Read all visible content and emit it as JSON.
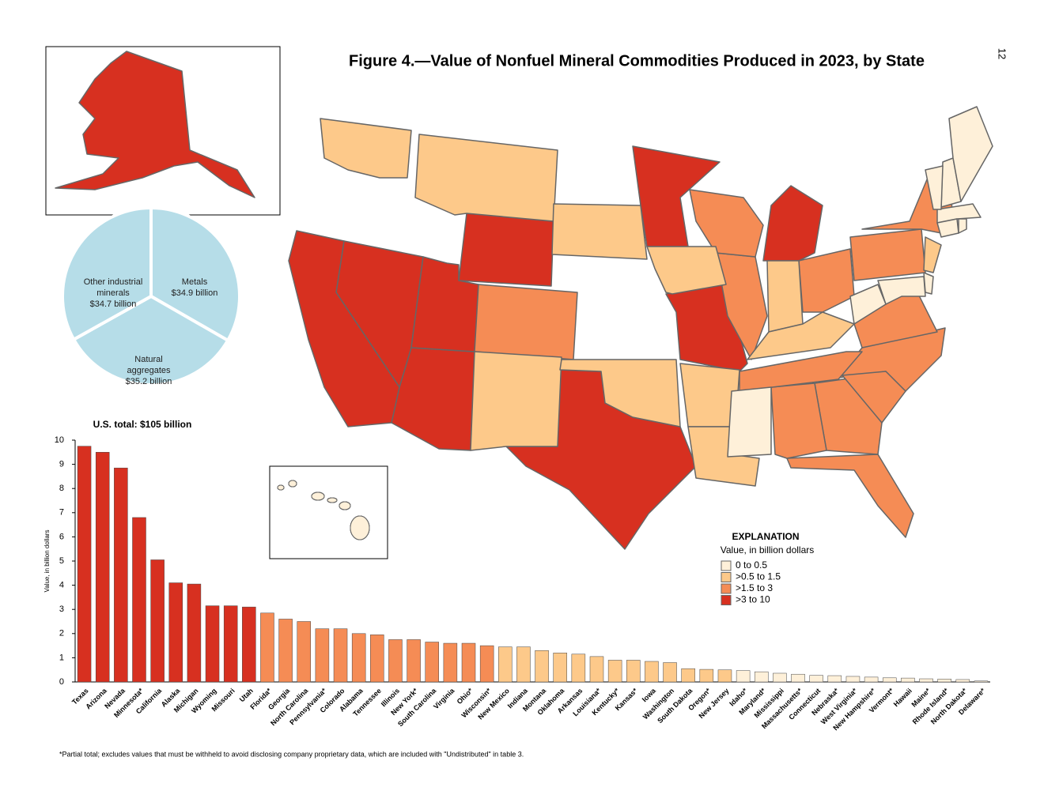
{
  "page_number": "12",
  "title": "Figure 4.—Value of Nonfuel Mineral Commodities Produced in 2023, by State",
  "footnote": "*Partial total; excludes values that must be withheld to avoid disclosing company proprietary data, which are included with \"Undistributed\" in table 3.",
  "map": {
    "legend_title": "EXPLANATION",
    "legend_subtitle": "Value, in billion dollars",
    "classes": [
      {
        "label": "0 to 0.5",
        "color": "#fef0d9"
      },
      {
        "label": ">0.5 to 1.5",
        "color": "#fdc98a"
      },
      {
        "label": ">1.5 to 3",
        "color": "#f58c55"
      },
      {
        "label": ">3 to 10",
        "color": "#d73020"
      }
    ]
  },
  "chart_data": [
    {
      "type": "pie",
      "total_label": "U.S. total: $105 billion",
      "color": "#b6dde8",
      "slices": [
        {
          "name": "Metals",
          "value": 34.9,
          "value_label": "$34.9 billion"
        },
        {
          "name": "Natural aggregates",
          "value": 35.2,
          "value_label": "$35.2 billion"
        },
        {
          "name": "Other industrial minerals",
          "value": 34.7,
          "value_label": "$34.7 billion"
        }
      ]
    },
    {
      "type": "bar",
      "ylabel": "Value, in billion dollars",
      "ylim": [
        0,
        10
      ],
      "yticks": [
        0,
        1,
        2,
        3,
        4,
        5,
        6,
        7,
        8,
        9,
        10
      ],
      "categories": [
        "Texas",
        "Arizona",
        "Nevada",
        "Minnesota*",
        "California",
        "Alaska",
        "Michigan",
        "Wyoming",
        "Missouri",
        "Utah",
        "Florida*",
        "Georgia",
        "North Carolina",
        "Pennsylvania*",
        "Colorado",
        "Alabama",
        "Tennessee",
        "Illinois",
        "New York*",
        "South Carolina",
        "Virginia",
        "Ohio*",
        "Wisconsin*",
        "New Mexico",
        "Indiana",
        "Montana",
        "Oklahoma",
        "Arkansas",
        "Louisiana*",
        "Kentucky*",
        "Kansas*",
        "Iowa",
        "Washington",
        "South Dakota",
        "Oregon*",
        "New Jersey",
        "Idaho*",
        "Maryland*",
        "Mississippi",
        "Massachusetts*",
        "Connecticut",
        "Nebraska*",
        "West Virginia*",
        "New Hampshire*",
        "Vermont*",
        "Hawaii",
        "Maine*",
        "Rhode Island*",
        "North Dakota*",
        "Delaware*"
      ],
      "values": [
        9.75,
        9.5,
        8.85,
        6.8,
        5.05,
        4.1,
        4.05,
        3.15,
        3.15,
        3.1,
        2.85,
        2.6,
        2.5,
        2.2,
        2.2,
        2.0,
        1.95,
        1.75,
        1.75,
        1.65,
        1.6,
        1.6,
        1.5,
        1.45,
        1.45,
        1.3,
        1.2,
        1.15,
        1.05,
        0.9,
        0.9,
        0.85,
        0.8,
        0.55,
        0.52,
        0.5,
        0.47,
        0.42,
        0.36,
        0.32,
        0.27,
        0.26,
        0.23,
        0.2,
        0.17,
        0.16,
        0.13,
        0.12,
        0.1,
        0.04
      ],
      "colors": [
        "#d73020",
        "#d73020",
        "#d73020",
        "#d73020",
        "#d73020",
        "#d73020",
        "#d73020",
        "#d73020",
        "#d73020",
        "#d73020",
        "#f58c55",
        "#f58c55",
        "#f58c55",
        "#f58c55",
        "#f58c55",
        "#f58c55",
        "#f58c55",
        "#f58c55",
        "#f58c55",
        "#f58c55",
        "#f58c55",
        "#f58c55",
        "#f58c55",
        "#fdc98a",
        "#fdc98a",
        "#fdc98a",
        "#fdc98a",
        "#fdc98a",
        "#fdc98a",
        "#fdc98a",
        "#fdc98a",
        "#fdc98a",
        "#fdc98a",
        "#fdc98a",
        "#fdc98a",
        "#fdc98a",
        "#fef0d9",
        "#fef0d9",
        "#fef0d9",
        "#fef0d9",
        "#fef0d9",
        "#fef0d9",
        "#fef0d9",
        "#fef0d9",
        "#fef0d9",
        "#fef0d9",
        "#fef0d9",
        "#fef0d9",
        "#fef0d9",
        "#fef0d9"
      ]
    }
  ]
}
